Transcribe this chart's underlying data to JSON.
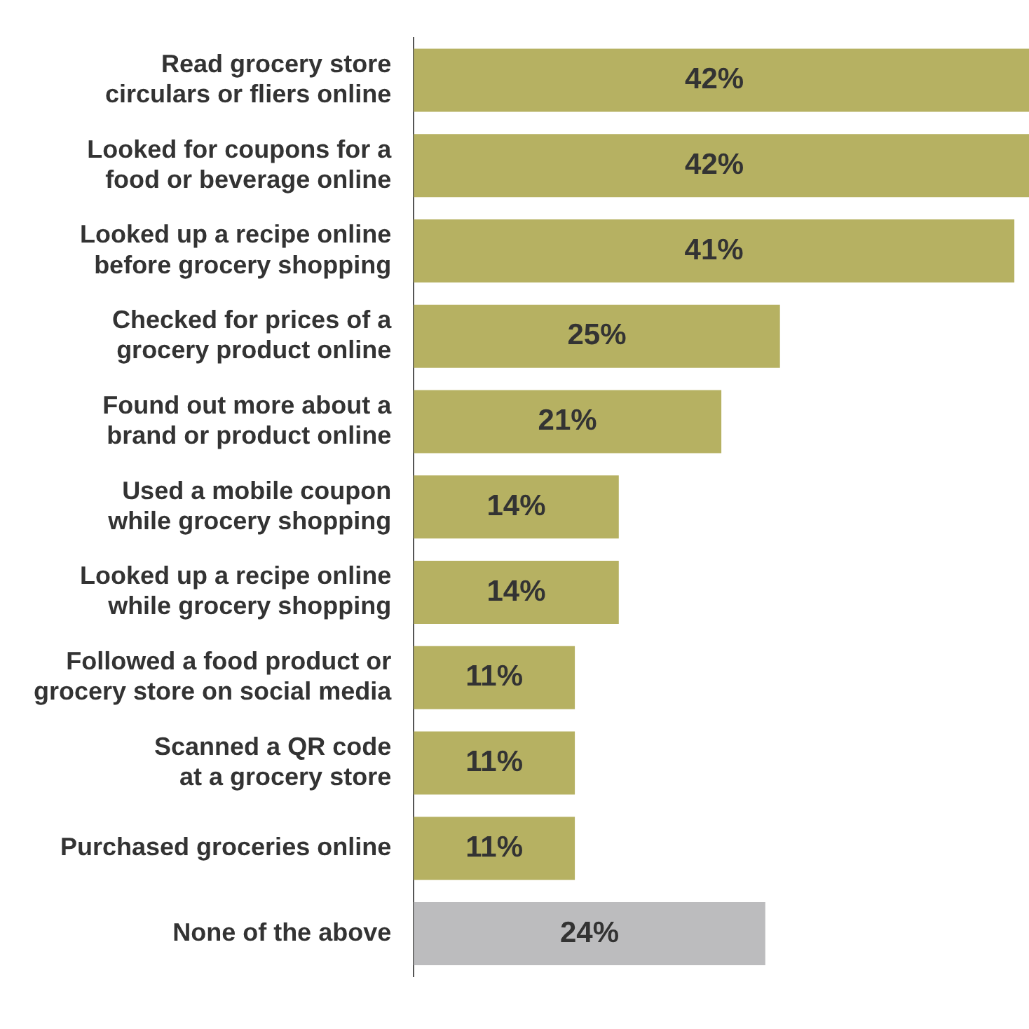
{
  "chart_data": {
    "type": "bar",
    "orientation": "horizontal",
    "categories": [
      "Read grocery store circulars or fliers online",
      "Looked for coupons for a food or beverage online",
      "Looked up a recipe online before grocery shopping",
      "Checked for prices of a grocery product online",
      "Found out more about a brand or product online",
      "Used a mobile coupon while grocery shopping",
      "Looked up a recipe online while grocery shopping",
      "Followed a food product or grocery store on social media",
      "Scanned a QR code at a grocery store",
      "Purchased groceries online",
      "None of the above"
    ],
    "values": [
      42,
      42,
      41,
      25,
      21,
      14,
      14,
      11,
      11,
      11,
      24
    ],
    "value_labels": [
      "42%",
      "42%",
      "41%",
      "25%",
      "21%",
      "14%",
      "14%",
      "11%",
      "11%",
      "11%",
      "24%"
    ],
    "colors": [
      "#b6b162",
      "#b6b162",
      "#b6b162",
      "#b6b162",
      "#b6b162",
      "#b6b162",
      "#b6b162",
      "#b6b162",
      "#b6b162",
      "#b6b162",
      "#bcbcbe"
    ],
    "legend": false
  }
}
